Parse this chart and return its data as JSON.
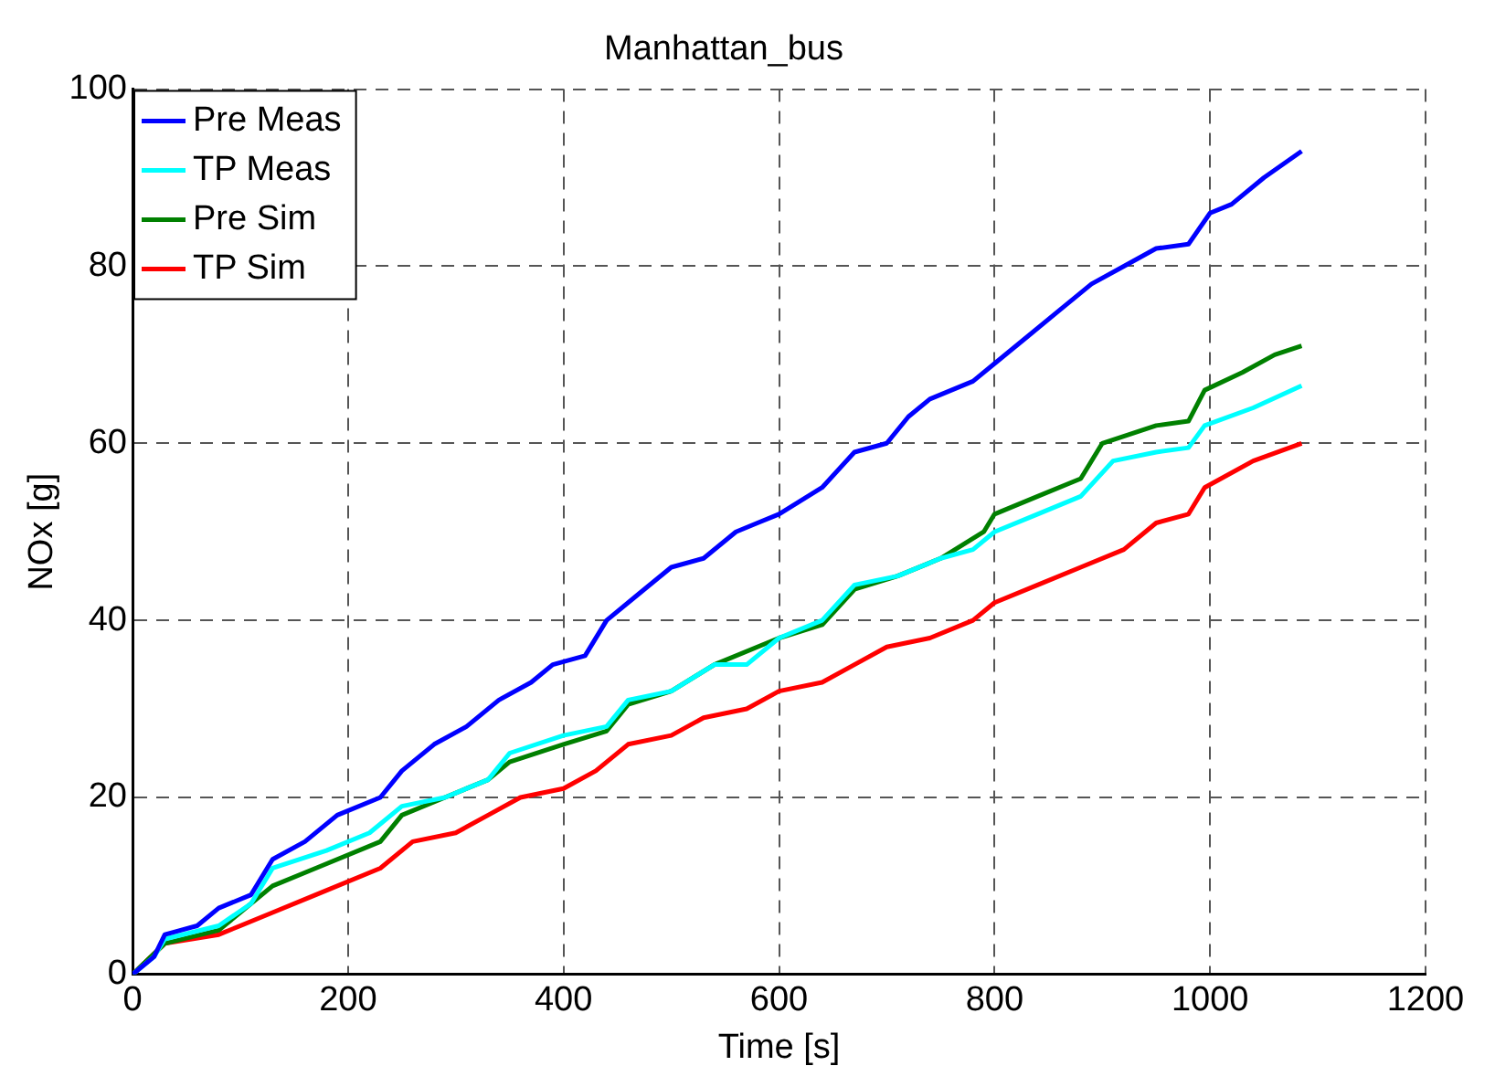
{
  "chart_data": {
    "type": "line",
    "title": "Manhattan_bus",
    "xlabel": "Time [s]",
    "ylabel": "NOx [g]",
    "xlim": [
      0,
      1200
    ],
    "ylim": [
      0,
      100
    ],
    "xticks": [
      0,
      200,
      400,
      600,
      800,
      1000,
      1200
    ],
    "yticks": [
      0,
      20,
      40,
      60,
      80,
      100
    ],
    "grid": true,
    "legend": "top left",
    "line_style": "solid",
    "marker": "none",
    "series": [
      {
        "name": "Pre Meas",
        "color": "#0000ff",
        "x": [
          0,
          20,
          30,
          60,
          80,
          110,
          130,
          160,
          190,
          230,
          250,
          280,
          310,
          340,
          370,
          390,
          420,
          440,
          470,
          500,
          530,
          560,
          580,
          600,
          640,
          670,
          700,
          720,
          740,
          780,
          800,
          830,
          860,
          890,
          920,
          950,
          980,
          1000,
          1020,
          1050,
          1085
        ],
        "values": [
          0,
          2,
          4.5,
          5.5,
          7.5,
          9,
          13,
          15,
          18,
          20,
          23,
          26,
          28,
          31,
          33,
          35,
          36,
          40,
          43,
          46,
          47,
          50,
          51,
          52,
          55,
          59,
          60,
          63,
          65,
          67,
          69,
          72,
          75,
          78,
          80,
          82,
          82.5,
          86,
          87,
          90,
          93
        ]
      },
      {
        "name": "TP Meas",
        "color": "#00ffff",
        "x": [
          0,
          20,
          30,
          80,
          110,
          130,
          180,
          220,
          250,
          290,
          330,
          350,
          400,
          440,
          460,
          500,
          540,
          570,
          600,
          640,
          670,
          710,
          750,
          780,
          800,
          840,
          880,
          910,
          950,
          980,
          995,
          1040,
          1085
        ],
        "values": [
          0,
          2,
          4,
          5.5,
          8,
          12,
          14,
          16,
          19,
          20,
          22,
          25,
          27,
          28,
          31,
          32,
          35,
          35,
          38,
          40,
          44,
          45,
          47,
          48,
          50,
          52,
          54,
          58,
          59,
          59.5,
          62,
          64,
          66.5
        ]
      },
      {
        "name": "Pre Sim",
        "color": "#008000",
        "x": [
          0,
          30,
          80,
          130,
          170,
          230,
          250,
          290,
          330,
          350,
          400,
          440,
          460,
          500,
          540,
          600,
          640,
          670,
          710,
          750,
          790,
          800,
          840,
          880,
          900,
          950,
          980,
          995,
          1030,
          1060,
          1085
        ],
        "values": [
          0,
          3.5,
          5,
          10,
          12,
          15,
          18,
          20,
          22,
          24,
          26,
          27.5,
          30.5,
          32,
          35,
          38,
          39.5,
          43.5,
          45,
          47,
          50,
          52,
          54,
          56,
          60,
          62,
          62.5,
          66,
          68,
          70,
          71
        ]
      },
      {
        "name": "TP Sim",
        "color": "#ff0000",
        "x": [
          0,
          30,
          80,
          130,
          170,
          230,
          260,
          300,
          330,
          360,
          400,
          430,
          460,
          500,
          530,
          570,
          600,
          640,
          670,
          700,
          740,
          780,
          800,
          840,
          880,
          920,
          950,
          980,
          995,
          1040,
          1085
        ],
        "values": [
          0,
          3.5,
          4.5,
          7,
          9,
          12,
          15,
          16,
          18,
          20,
          21,
          23,
          26,
          27,
          29,
          30,
          32,
          33,
          35,
          37,
          38,
          40,
          42,
          44,
          46,
          48,
          51,
          52,
          55,
          58,
          60
        ]
      }
    ]
  }
}
